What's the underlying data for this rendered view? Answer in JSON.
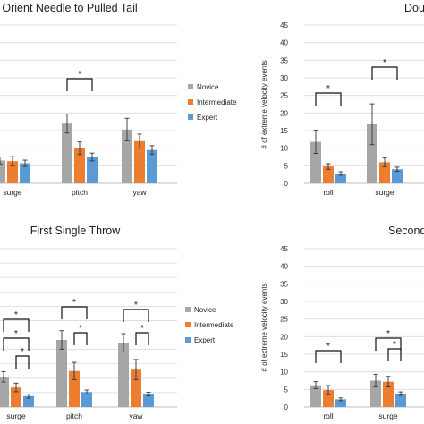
{
  "colors": {
    "novice": "#a6a6a6",
    "intermediate": "#ed7d31",
    "expert": "#5b9bd5",
    "grid": "#d9d9d9",
    "axis": "#bfbfbf",
    "bracket": "#111111"
  },
  "chart_data": [
    {
      "type": "bar",
      "title": "Orient Needle to Pulled Tail",
      "categories": [
        "surge",
        "pitch",
        "yaw"
      ],
      "series": [
        {
          "name": "Novice",
          "values": [
            6.5,
            17.0,
            15.3
          ]
        },
        {
          "name": "Intermediate",
          "values": [
            6.3,
            10.0,
            12.0
          ]
        },
        {
          "name": "Expert",
          "values": [
            5.7,
            7.5,
            9.5
          ]
        }
      ],
      "errors": [
        [
          1.0,
          2.7,
          3.2
        ],
        [
          1.3,
          1.8,
          2.0
        ],
        [
          0.9,
          1.1,
          1.2
        ]
      ],
      "ylim": [
        0,
        45
      ],
      "brackets": [
        {
          "category": 1,
          "from": 0,
          "to": 2,
          "label": "*"
        }
      ],
      "legend": "right"
    },
    {
      "type": "bar",
      "title": "Double",
      "categories": [
        "roll",
        "surge"
      ],
      "series": [
        {
          "name": "Novice",
          "values": [
            11.8,
            16.8
          ]
        },
        {
          "name": "Intermediate",
          "values": [
            4.8,
            6.0
          ]
        },
        {
          "name": "Expert",
          "values": [
            2.8,
            4.0
          ]
        }
      ],
      "errors": [
        [
          3.3,
          5.8
        ],
        [
          0.8,
          1.3
        ],
        [
          0.5,
          0.6
        ]
      ],
      "ylabel": "# of extreme velocity events",
      "yticks": [
        0,
        5,
        10,
        15,
        20,
        25,
        30,
        35,
        40,
        45
      ],
      "ylim": [
        0,
        45
      ],
      "brackets": [
        {
          "category": 0,
          "from": 0,
          "to": 2,
          "label": "*"
        },
        {
          "category": 1,
          "from": 0,
          "to": 2,
          "label": "*"
        }
      ]
    },
    {
      "type": "bar",
      "title": "First Single Throw",
      "categories": [
        "surge",
        "pitch",
        "yaw"
      ],
      "series": [
        {
          "name": "Novice",
          "values": [
            10.5,
            23.3,
            22.3
          ]
        },
        {
          "name": "Intermediate",
          "values": [
            6.8,
            12.5,
            13.0
          ]
        },
        {
          "name": "Expert",
          "values": [
            3.8,
            5.2,
            4.5
          ]
        }
      ],
      "errors": [
        [
          1.8,
          3.2,
          3.2
        ],
        [
          1.5,
          3.0,
          3.5
        ],
        [
          0.7,
          0.7,
          0.6
        ]
      ],
      "ylim": [
        0,
        55
      ],
      "brackets": [
        {
          "category": 0,
          "from": 0,
          "to": 2,
          "label": "*"
        },
        {
          "category": 0,
          "from": 0,
          "to": 2,
          "label": "*"
        },
        {
          "category": 0,
          "from": 1,
          "to": 2,
          "label": "*"
        },
        {
          "category": 1,
          "from": 0,
          "to": 2,
          "label": "*"
        },
        {
          "category": 1,
          "from": 1,
          "to": 2,
          "label": "*"
        },
        {
          "category": 2,
          "from": 0,
          "to": 2,
          "label": "*"
        },
        {
          "category": 2,
          "from": 1,
          "to": 2,
          "label": "*"
        }
      ],
      "legend": "right"
    },
    {
      "type": "bar",
      "title": "Second",
      "categories": [
        "roll",
        "surge"
      ],
      "series": [
        {
          "name": "Novice",
          "values": [
            6.2,
            7.5
          ]
        },
        {
          "name": "Intermediate",
          "values": [
            4.8,
            7.2
          ]
        },
        {
          "name": "Expert",
          "values": [
            2.2,
            3.8
          ]
        }
      ],
      "errors": [
        [
          1.0,
          1.8
        ],
        [
          1.3,
          1.5
        ],
        [
          0.4,
          0.5
        ]
      ],
      "ylabel": "# of extreme velocity events",
      "yticks": [
        0,
        5,
        10,
        15,
        20,
        25,
        30,
        35,
        40,
        45
      ],
      "ylim": [
        0,
        45
      ],
      "brackets": [
        {
          "category": 0,
          "from": 0,
          "to": 2,
          "label": "*"
        },
        {
          "category": 1,
          "from": 0,
          "to": 2,
          "label": "*"
        },
        {
          "category": 1,
          "from": 1,
          "to": 2,
          "label": "*"
        }
      ]
    }
  ]
}
